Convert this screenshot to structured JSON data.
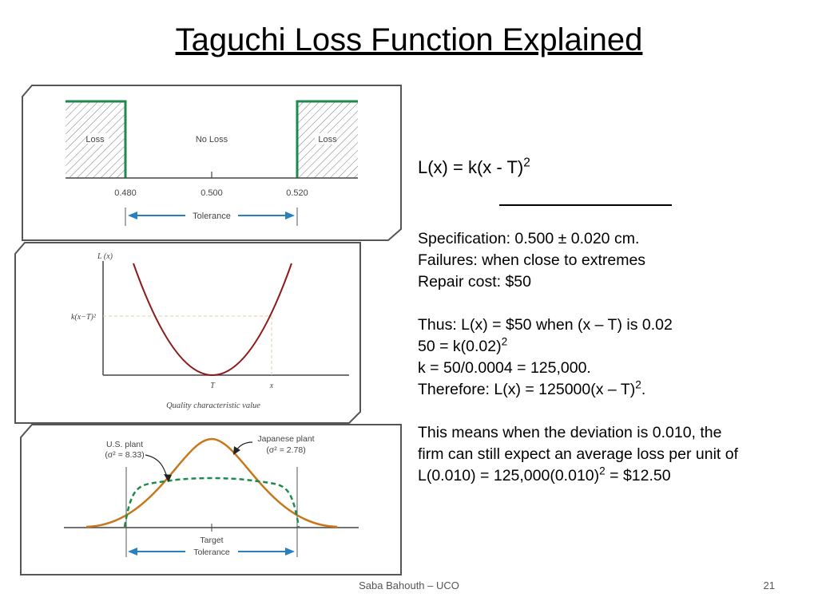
{
  "slide": {
    "title": "Taguchi Loss Function Explained",
    "footer_author": "Saba Bahouth – UCO",
    "page_number": "21"
  },
  "panel_top": {
    "loss_left": "Loss",
    "no_loss": "No Loss",
    "loss_right": "Loss",
    "tick_left": "0.480",
    "tick_mid": "0.500",
    "tick_right": "0.520",
    "tolerance": "Tolerance"
  },
  "panel_middle": {
    "y_label": "L (x)",
    "y_mark": "k(x−T)²",
    "x_T": "T",
    "x_x": "x",
    "x_label": "Quality characteristic value"
  },
  "panel_bottom": {
    "us_label": "U.S. plant",
    "us_sigma": "(σ² = 8.33)",
    "jp_label": "Japanese plant",
    "jp_sigma": "(σ² = 2.78)",
    "target": "Target",
    "tolerance": "Tolerance"
  },
  "content": {
    "formula_base": "L(x) = k(x - T)",
    "formula_exp": "2",
    "spec": "Specification: 0.500 ± 0.020 cm.",
    "failures": "Failures: when close to extremes",
    "repair": "Repair cost: $50",
    "thus": "Thus: L(x) = $50 when (x – T) is 0.02",
    "eq1_base": "50 = k(0.02)",
    "eq1_exp": "2",
    "eq2": "k = 50/0.0004 = 125,000.",
    "therefore_base": "Therefore: L(x) = 125000(x – T)",
    "therefore_exp": "2",
    "therefore_end": ".",
    "means_line1": "This means when the deviation is 0.010, the",
    "means_line2": "firm can still expect an average loss per unit of",
    "means_line3_base": "L(0.010) = 125,000(0.010)",
    "means_line3_exp": "2",
    "means_line3_end": " = $12.50"
  },
  "colors": {
    "loss_edge": "#1f8a4c",
    "curve": "#8b1a1a",
    "japanese": "#c8761a",
    "us": "#1f8a4c",
    "arrow": "#2a7fbf"
  }
}
